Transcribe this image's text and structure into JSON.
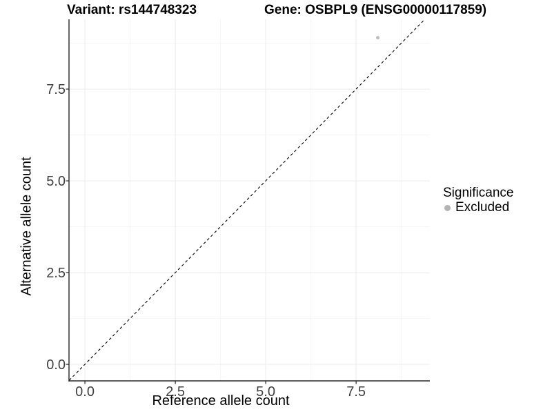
{
  "chart_data": {
    "type": "scatter",
    "title_left": "Variant: rs144748323",
    "title_right": "Gene: OSBPL9 (ENSG00000117859)",
    "xlabel": "Reference allele count",
    "ylabel": "Alternative allele count",
    "xlim": [
      -0.44,
      9.54
    ],
    "ylim": [
      -0.45,
      9.4
    ],
    "xtick_values": [
      0,
      2.5,
      5,
      7.5
    ],
    "xtick_labels": [
      "0.0",
      "2.5",
      "5.0",
      "7.5"
    ],
    "ytick_values": [
      0,
      2.5,
      5,
      7.5
    ],
    "ytick_labels": [
      "0.0",
      "2.5",
      "5.0",
      "7.5"
    ],
    "x_minor_breaks": [
      1.25,
      3.75,
      6.25,
      8.75
    ],
    "y_minor_breaks": [
      1.25,
      3.75,
      6.25,
      8.75
    ],
    "grid": true,
    "legend_position": "right",
    "points": [
      {
        "x": 8.1,
        "y": 8.9,
        "series": "Excluded",
        "color": "#bdbdbd",
        "radius": 2.5
      }
    ],
    "identity_line": {
      "slope": 1,
      "intercept": 0,
      "style": "dashed",
      "color": "#000000"
    },
    "legend": {
      "title": "Significance",
      "entries": [
        {
          "label": "Excluded",
          "color": "#b3b3b3"
        }
      ]
    },
    "colors": {
      "grid_major": "#ebebeb",
      "grid_minor": "#f5f5f5",
      "axis": "#262626",
      "tick_text": "#404040",
      "title_text": "#000000",
      "background": "#ffffff"
    }
  }
}
